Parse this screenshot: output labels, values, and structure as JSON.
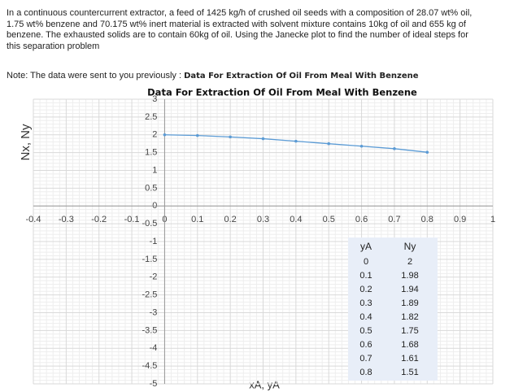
{
  "problem": "In a continuous countercurrent extractor, a feed of 1425 kg/h of crushed oil seeds with a composition of 28.07 wt% oil, 1.75 wt% benzene and 70.175 wt% inert material is extracted with solvent mixture contains 10kg of oil and 655 kg of benzene. The exhausted solids are to contain 60kg of oil. Using the Janecke plot to find the number of ideal steps for this separation problem",
  "note": {
    "text": "Note: The data were sent to you previously :",
    "emphasis": "Data For Extraction Of Oil From Meal With Benzene"
  },
  "table": {
    "headers": [
      "yA",
      "Ny"
    ]
  },
  "chart_data": {
    "type": "line",
    "title": "Data For Extraction Of Oil From Meal With Benzene",
    "x_label": "xA, yA",
    "y_label": "Nx, Ny",
    "x": [
      0,
      0.1,
      0.2,
      0.3,
      0.4,
      0.5,
      0.6,
      0.7,
      0.8
    ],
    "series": [
      {
        "name": "Ny",
        "color": "#5b9bd5",
        "values": [
          2,
          1.98,
          1.94,
          1.89,
          1.82,
          1.75,
          1.68,
          1.61,
          1.51
        ]
      }
    ],
    "xlim": [
      -0.4,
      1
    ],
    "xticks": [
      -0.4,
      -0.3,
      -0.2,
      -0.1,
      0,
      0.1,
      0.2,
      0.3,
      0.4,
      0.5,
      0.6,
      0.7,
      0.8,
      0.9,
      1
    ],
    "ylim": [
      -5,
      3
    ],
    "yticks": [
      -5,
      -4.5,
      -4,
      -3.5,
      -3,
      -2.5,
      -2,
      -1.5,
      -1,
      -0.5,
      0,
      0.5,
      1,
      1.5,
      2,
      2.5,
      3
    ],
    "grid": true
  }
}
